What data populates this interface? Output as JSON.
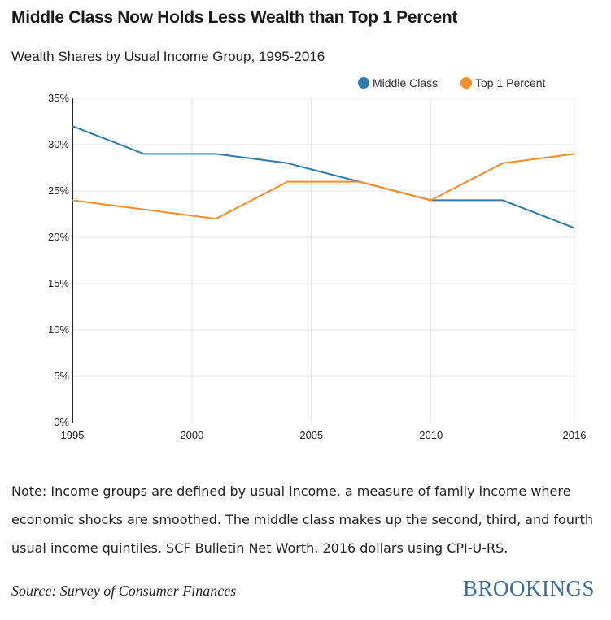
{
  "title": "Middle Class Now Holds Less Wealth than Top 1 Percent",
  "subtitle": "Wealth Shares by Usual Income Group, 1995-2016",
  "note": "Note: Income groups are defined by usual income, a measure of family income where economic shocks are smoothed. The middle class makes up the second, third, and fourth usual income quintiles. SCF Bulletin Net Worth. 2016 dollars using CPI-U-RS.",
  "source": "Source: Survey of Consumer Finances",
  "brand": "BROOKINGS",
  "chart_data": {
    "type": "line",
    "title": "Wealth Shares by Usual Income Group, 1995-2016",
    "xlabel": "",
    "ylabel": "",
    "xlim": [
      1995,
      2016
    ],
    "ylim": [
      0,
      35
    ],
    "x_ticks": [
      1995,
      2000,
      2005,
      2010,
      2016
    ],
    "y_ticks": [
      0,
      5,
      10,
      15,
      20,
      25,
      30,
      35
    ],
    "y_tick_labels": [
      "0%",
      "5%",
      "10%",
      "15%",
      "20%",
      "25%",
      "30%",
      "35%"
    ],
    "grid": true,
    "legend_position": "top-right",
    "x": [
      1995,
      1998,
      2001,
      2004,
      2007,
      2010,
      2013,
      2016
    ],
    "series": [
      {
        "name": "Middle Class",
        "color": "#2e7aa8",
        "values": [
          32,
          29,
          29,
          28,
          26,
          24,
          24,
          21
        ]
      },
      {
        "name": "Top 1 Percent",
        "color": "#f28e2b",
        "values": [
          24,
          23,
          22,
          26,
          26,
          24,
          28,
          29
        ]
      }
    ]
  }
}
